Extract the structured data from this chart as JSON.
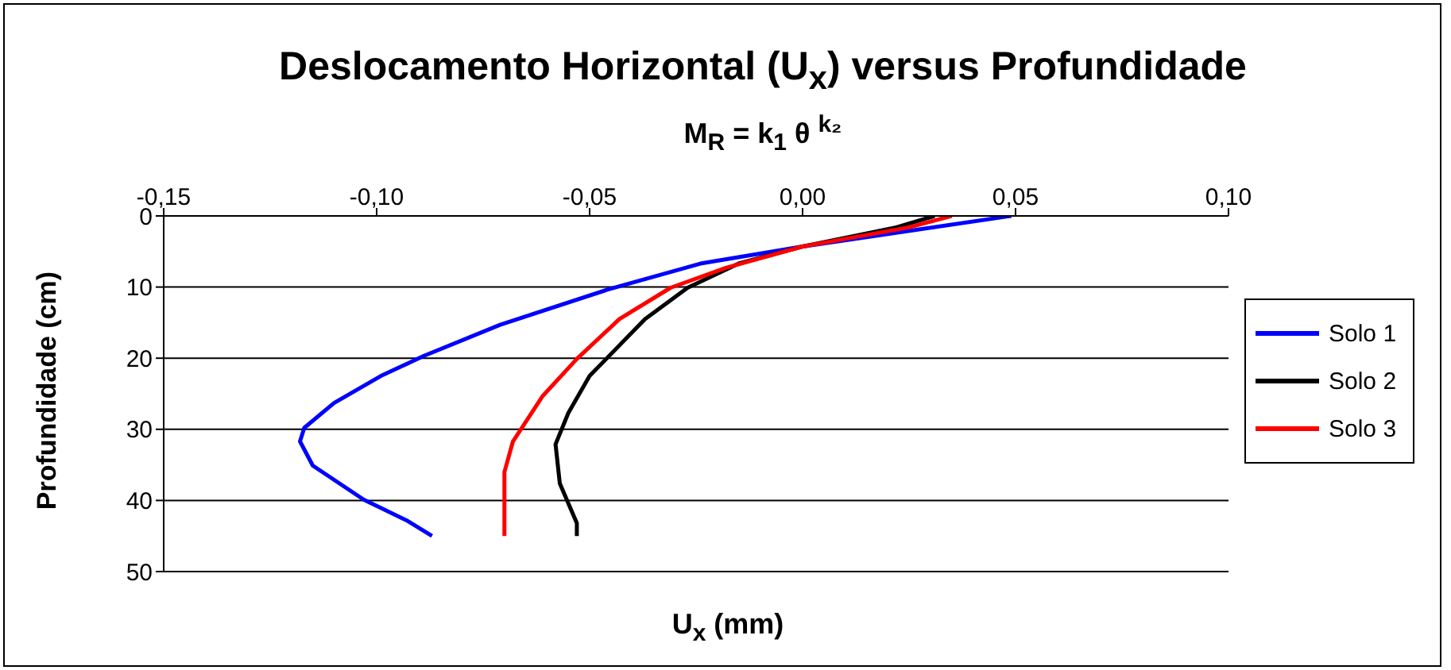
{
  "chart_data": {
    "type": "line",
    "title": "Deslocamento Horizontal (U$_{x}$) versus Profundidade",
    "subtitle": "M$_{R}$ = k$_{1}$ θ $^{k₂}$",
    "xlabel": "U$_{x}$ (mm)",
    "ylabel": "Profundidade (cm)",
    "xlim": [
      -0.15,
      0.1
    ],
    "xticks": [
      {
        "value": -0.15,
        "label": "-0,15"
      },
      {
        "value": -0.1,
        "label": "-0,10"
      },
      {
        "value": -0.05,
        "label": "-0,05"
      },
      {
        "value": 0,
        "label": "0,00"
      },
      {
        "value": 0.05,
        "label": "0,05"
      },
      {
        "value": 0.1,
        "label": "0,10"
      }
    ],
    "ylim": [
      50,
      0
    ],
    "yticks": [
      0,
      10,
      20,
      30,
      40,
      50
    ],
    "grid": "y",
    "legend": "right",
    "marker": "none",
    "line_style": "solid",
    "series": [
      {
        "name": "Solo 1",
        "color": "#0000ff",
        "x": [
          0.049,
          0,
          -0.024,
          -0.046,
          -0.071,
          -0.089,
          -0.099,
          -0.11,
          -0.117,
          -0.118,
          -0.115,
          -0.103,
          -0.093,
          -0.087
        ],
        "values": [
          0,
          4.3,
          6.7,
          10.4,
          15.3,
          19.7,
          22.5,
          26.3,
          29.8,
          31.7,
          35.1,
          39.9,
          42.8,
          45.0
        ]
      },
      {
        "name": "Solo 2",
        "color": "#000000",
        "x": [
          0.031,
          0.022,
          0,
          -0.015,
          -0.027,
          -0.037,
          -0.05,
          -0.055,
          -0.058,
          -0.057,
          -0.053,
          -0.053
        ],
        "values": [
          0,
          1.6,
          4.3,
          6.7,
          10.1,
          14.5,
          22.5,
          27.7,
          32.1,
          37.6,
          43.2,
          45.0
        ]
      },
      {
        "name": "Solo 3",
        "color": "#ff0000",
        "x": [
          0.035,
          0.025,
          0,
          -0.018,
          -0.031,
          -0.043,
          -0.053,
          -0.061,
          -0.068,
          -0.07,
          -0.07,
          -0.07,
          -0.07
        ],
        "values": [
          0,
          1.6,
          4.3,
          7.3,
          10.1,
          14.5,
          20.1,
          25.3,
          31.7,
          36.0,
          41.6,
          43.1,
          45.0
        ]
      }
    ]
  }
}
